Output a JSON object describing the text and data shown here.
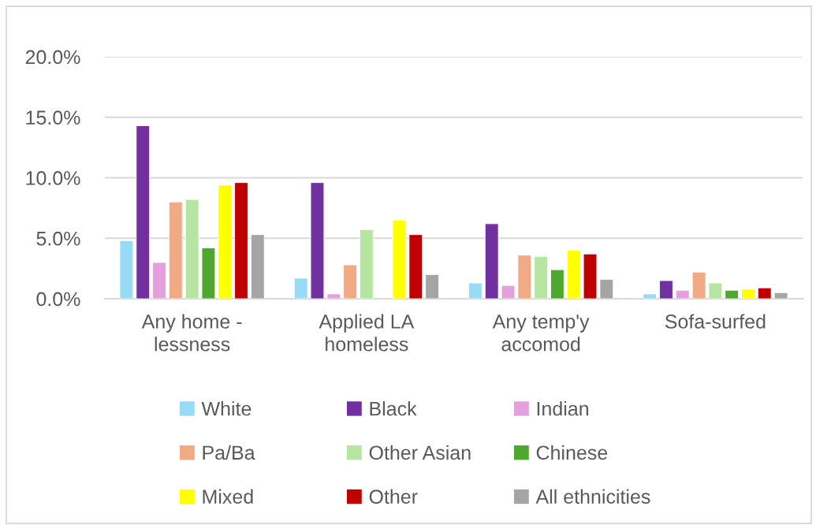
{
  "chart_data": {
    "type": "bar",
    "categories": [
      "Any home -\nlessness",
      "Applied LA\nhomeless",
      "Any temp'y\naccomod",
      "Sofa-surfed"
    ],
    "series": [
      {
        "name": "White",
        "color": "#97dbf7",
        "values": [
          4.8,
          1.7,
          1.3,
          0.4
        ]
      },
      {
        "name": "Black",
        "color": "#7030a0",
        "values": [
          14.3,
          9.6,
          6.2,
          1.5
        ]
      },
      {
        "name": "Indian",
        "color": "#e4a0dc",
        "values": [
          3.0,
          0.4,
          1.1,
          0.7
        ]
      },
      {
        "name": "Pa/Ba",
        "color": "#f1aa84",
        "values": [
          8.0,
          2.8,
          3.6,
          2.2
        ]
      },
      {
        "name": "Other Asian",
        "color": "#b6e5a2",
        "values": [
          8.2,
          5.7,
          3.5,
          1.3
        ]
      },
      {
        "name": "Chinese",
        "color": "#4ea72e",
        "values": [
          4.2,
          null,
          2.4,
          0.7
        ]
      },
      {
        "name": "Mixed",
        "color": "#ffff00",
        "values": [
          9.4,
          6.5,
          4.0,
          0.8
        ]
      },
      {
        "name": "Other",
        "color": "#c00000",
        "values": [
          9.6,
          5.3,
          3.7,
          0.9
        ]
      },
      {
        "name": "All ethnicities",
        "color": "#a5a5a5",
        "values": [
          5.3,
          2.0,
          1.6,
          0.5
        ]
      }
    ],
    "ylim": [
      0,
      20
    ],
    "yticks": [
      {
        "value": 0,
        "label": "0.0%"
      },
      {
        "value": 5,
        "label": "5.0%"
      },
      {
        "value": 10,
        "label": "10.0%"
      },
      {
        "value": 15,
        "label": "15.0%"
      },
      {
        "value": 20,
        "label": "20.0%"
      }
    ],
    "grid": "y",
    "legend": "bottom"
  }
}
